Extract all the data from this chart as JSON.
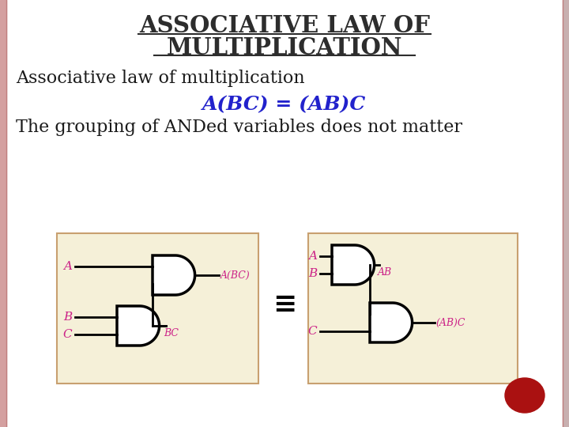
{
  "title_line1": "ASSOCIATIVE LAW OF",
  "title_line2": "MULTIPLICATION",
  "title_color": "#2d2d2d",
  "title_fontsize": 21,
  "subtitle1": "Associative law of multiplication",
  "subtitle2": "A(BC) = (AB)C",
  "subtitle3": "The grouping of ANDed variables does not matter",
  "subtitle_color": "#1a1a1a",
  "formula_color": "#2222cc",
  "label_color": "#cc2288",
  "bg_color": "#ffffff",
  "panel_color": "#f5f0d8",
  "border_color": "#c8a070",
  "gate_fill": "#ffffff",
  "gate_edge": "#000000",
  "red_circle_color": "#aa1111",
  "equiv_symbol": "≡",
  "left_border_color": "#d4a0a0",
  "right_border_color": "#c8b0b0"
}
